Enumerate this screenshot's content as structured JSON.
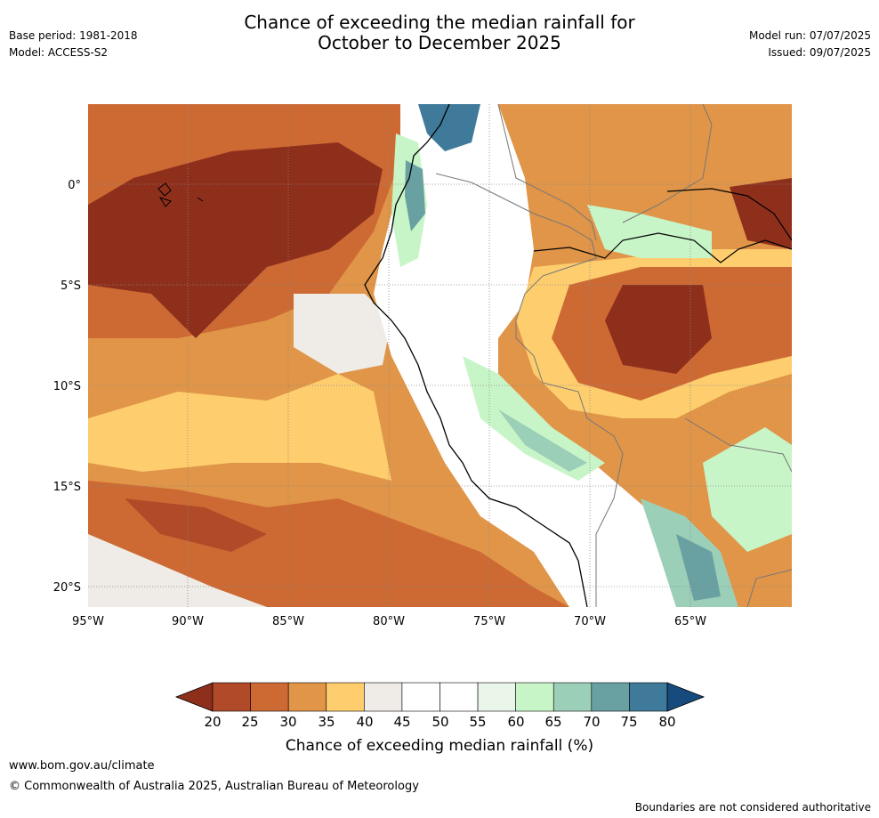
{
  "header": {
    "title_line1": "Chance of exceeding the median rainfall for",
    "title_line2": "October to December 2025",
    "base_period": "Base period: 1981-2018",
    "model": "Model: ACCESS-S2",
    "model_run": "Model run: 07/07/2025",
    "issued": "Issued: 09/07/2025"
  },
  "map": {
    "lon_labels": [
      "95°W",
      "90°W",
      "85°W",
      "80°W",
      "75°W",
      "70°W",
      "65°W"
    ],
    "lat_labels": [
      "0°",
      "5°S",
      "10°S",
      "15°S",
      "20°S"
    ]
  },
  "colorbar": {
    "ticks": [
      "20",
      "25",
      "30",
      "35",
      "40",
      "45",
      "50",
      "55",
      "60",
      "65",
      "70",
      "75",
      "80"
    ],
    "label": "Chance of exceeding median rainfall (%)",
    "colors": [
      "#8e2f1c",
      "#b04a28",
      "#cd6a34",
      "#e09548",
      "#fdcd6e",
      "#efebe6",
      "#ffffff",
      "#ffffff",
      "#eaf5ea",
      "#c8f5c8",
      "#9ccfb8",
      "#69a1a3",
      "#3f7a9a",
      "#174a7d"
    ]
  },
  "footer": {
    "url": "www.bom.gov.au/climate",
    "copyright": "© Commonwealth of Australia 2025, Australian Bureau of Meteorology",
    "disclaimer": "Boundaries are not considered authoritative"
  }
}
